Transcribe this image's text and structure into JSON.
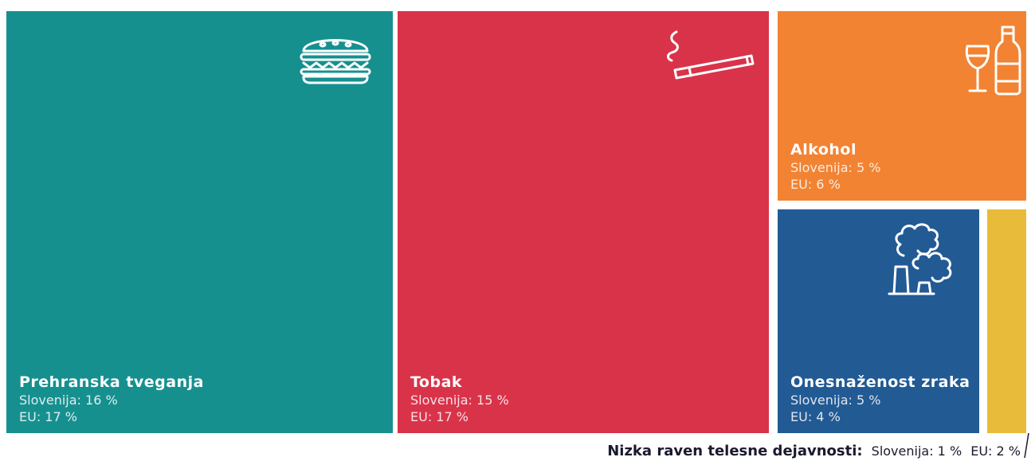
{
  "chart_data": {
    "type": "treemap",
    "unit": "%",
    "items": [
      {
        "key": "diet",
        "name": "Prehranska tveganja",
        "slovenia": 16,
        "eu": 17,
        "slovenia_label": "Slovenija: 16 %",
        "eu_label": "EU: 17 %",
        "color": "#16908f",
        "icon": "burger-icon"
      },
      {
        "key": "tobacco",
        "name": "Tobak",
        "slovenia": 15,
        "eu": 17,
        "slovenia_label": "Slovenija: 15 %",
        "eu_label": "EU: 17 %",
        "color": "#d9334a",
        "icon": "cigarette-icon"
      },
      {
        "key": "alcohol",
        "name": "Alkohol",
        "slovenia": 5,
        "eu": 6,
        "slovenia_label": "Slovenija: 5 %",
        "eu_label": "EU: 6 %",
        "color": "#f28332",
        "icon": "wine-bottle-icon"
      },
      {
        "key": "air",
        "name": "Onesnaženost zraka",
        "slovenia": 5,
        "eu": 4,
        "slovenia_label": "Slovenija: 5 %",
        "eu_label": "EU: 4 %",
        "color": "#225a94",
        "icon": "factory-smoke-icon"
      },
      {
        "key": "physical",
        "name": "Nizka raven telesne dejavnosti:",
        "slovenia": 1,
        "eu": 2,
        "slovenia_label": "Slovenija: 1 %",
        "eu_label": "EU: 2 %",
        "color": "#e9bb3a"
      }
    ]
  }
}
